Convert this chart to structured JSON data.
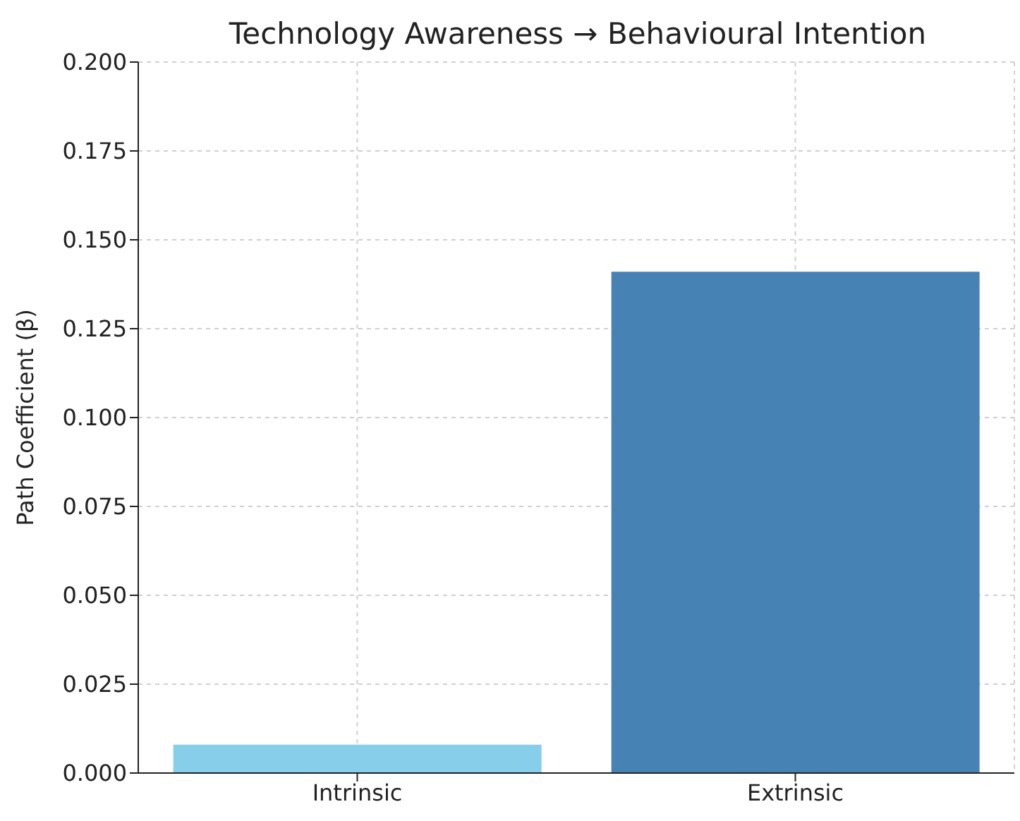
{
  "chart_data": {
    "type": "bar",
    "title": "Technology Awareness → Behavioural Intention",
    "ylabel": "Path Coefficient (β)",
    "categories": [
      "Intrinsic",
      "Extrinsic"
    ],
    "values": [
      0.008,
      0.141
    ],
    "colors": [
      "#87ceeb",
      "#4682b4"
    ],
    "ylim": [
      0,
      0.2
    ],
    "yticks": [
      {
        "value": 0,
        "label": "0.000"
      },
      {
        "value": 0.025,
        "label": "0.025"
      },
      {
        "value": 0.05,
        "label": "0.050"
      },
      {
        "value": 0.075,
        "label": "0.075"
      },
      {
        "value": 0.1,
        "label": "0.100"
      },
      {
        "value": 0.125,
        "label": "0.125"
      },
      {
        "value": 0.15,
        "label": "0.150"
      },
      {
        "value": 0.175,
        "label": "0.175"
      },
      {
        "value": 0.2,
        "label": "0.200"
      }
    ],
    "grid": true
  }
}
